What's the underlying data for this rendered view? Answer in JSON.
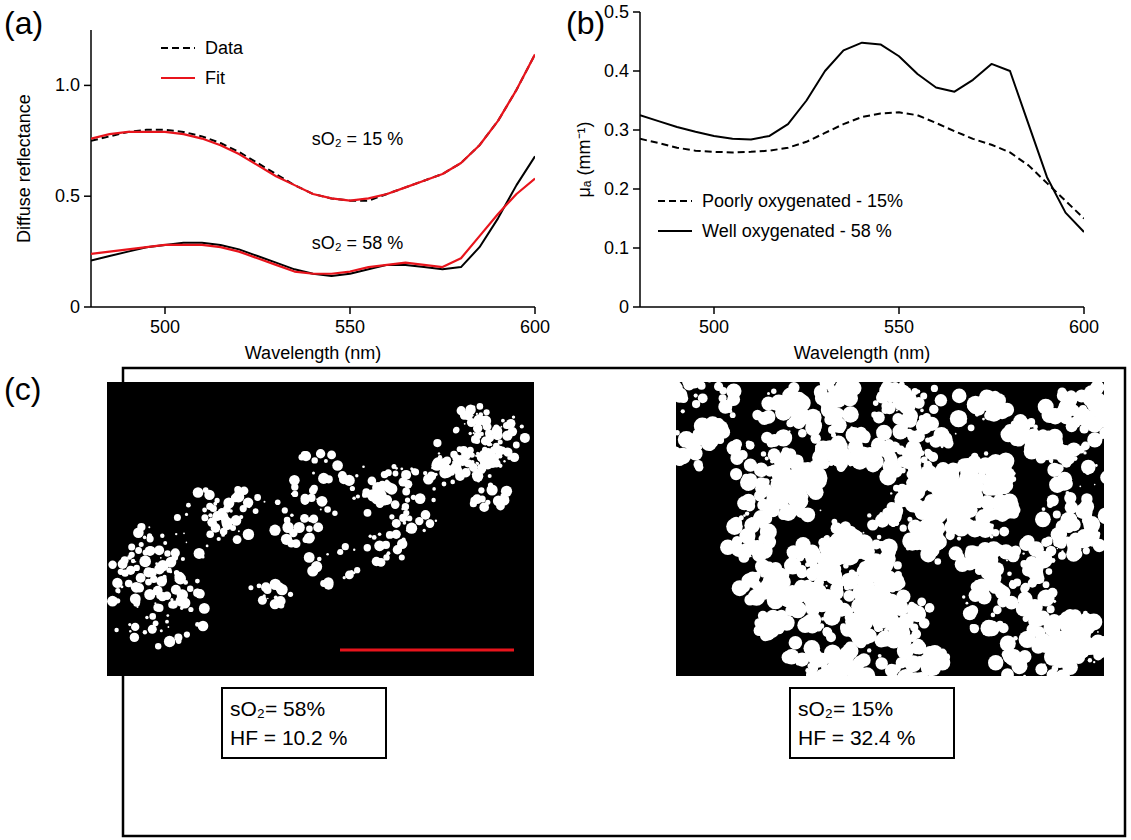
{
  "chart_data": [
    {
      "type": "line",
      "title": "(a)",
      "x_label": "Wavelength (nm)",
      "y_label": "Diffuse reflectance",
      "x": [
        480,
        485,
        490,
        495,
        500,
        505,
        510,
        515,
        520,
        525,
        530,
        535,
        540,
        545,
        550,
        555,
        560,
        565,
        570,
        575,
        580,
        585,
        590,
        595,
        600
      ],
      "series": [
        {
          "name": "Data",
          "color": "#000000",
          "line_style": "dashed",
          "values": [
            0.75,
            0.77,
            0.79,
            0.8,
            0.8,
            0.79,
            0.77,
            0.74,
            0.7,
            0.65,
            0.6,
            0.55,
            0.51,
            0.49,
            0.48,
            0.48,
            0.51,
            0.54,
            0.57,
            0.6,
            0.65,
            0.73,
            0.84,
            0.98,
            1.14
          ]
        },
        {
          "name": "Fit",
          "color": "#e8141c",
          "line_style": "solid",
          "values": [
            0.76,
            0.78,
            0.79,
            0.79,
            0.79,
            0.78,
            0.76,
            0.73,
            0.69,
            0.64,
            0.59,
            0.55,
            0.51,
            0.49,
            0.48,
            0.49,
            0.51,
            0.54,
            0.57,
            0.6,
            0.65,
            0.73,
            0.84,
            0.98,
            1.14
          ]
        },
        {
          "color": "#000000",
          "line_style": "solid",
          "values": [
            0.21,
            0.23,
            0.25,
            0.27,
            0.28,
            0.29,
            0.29,
            0.28,
            0.26,
            0.23,
            0.2,
            0.17,
            0.15,
            0.14,
            0.15,
            0.17,
            0.19,
            0.19,
            0.18,
            0.17,
            0.18,
            0.27,
            0.4,
            0.55,
            0.68
          ]
        },
        {
          "color": "#e8141c",
          "line_style": "solid",
          "values": [
            0.24,
            0.25,
            0.26,
            0.27,
            0.28,
            0.28,
            0.28,
            0.27,
            0.25,
            0.22,
            0.19,
            0.16,
            0.15,
            0.15,
            0.16,
            0.18,
            0.19,
            0.2,
            0.19,
            0.18,
            0.22,
            0.32,
            0.42,
            0.51,
            0.58
          ]
        }
      ],
      "annotations": [
        "sO₂ = 15 %",
        "sO₂ = 58 %"
      ],
      "xlim": [
        480,
        600
      ],
      "xticks": [
        500,
        550,
        600
      ],
      "ylim": [
        0,
        1.25
      ],
      "yticks": [
        0,
        0.5,
        {
          "value": 1,
          "label": "1.0"
        }
      ],
      "legend": "upper left",
      "grid": false
    },
    {
      "type": "line",
      "title": "(b)",
      "x_label": "Wavelength (nm)",
      "y_label": "μₐ (mm⁻¹)",
      "x": [
        480,
        485,
        490,
        495,
        500,
        505,
        510,
        515,
        520,
        525,
        530,
        535,
        540,
        545,
        550,
        555,
        560,
        565,
        570,
        575,
        580,
        585,
        590,
        595,
        600
      ],
      "series": [
        {
          "name": "Poorly oxygenated - 15%",
          "color": "#000000",
          "line_style": "dashed",
          "values": [
            0.285,
            0.278,
            0.27,
            0.265,
            0.263,
            0.262,
            0.263,
            0.265,
            0.27,
            0.28,
            0.295,
            0.31,
            0.322,
            0.328,
            0.33,
            0.325,
            0.312,
            0.298,
            0.285,
            0.275,
            0.262,
            0.24,
            0.21,
            0.18,
            0.15
          ]
        },
        {
          "name": "Well oxygenated - 58 %",
          "color": "#000000",
          "line_style": "solid",
          "values": [
            0.325,
            0.315,
            0.305,
            0.297,
            0.29,
            0.285,
            0.284,
            0.29,
            0.31,
            0.35,
            0.4,
            0.435,
            0.448,
            0.445,
            0.425,
            0.395,
            0.372,
            0.365,
            0.385,
            0.412,
            0.4,
            0.31,
            0.22,
            0.16,
            0.127
          ]
        }
      ],
      "xlim": [
        480,
        600
      ],
      "xticks": [
        500,
        550,
        600
      ],
      "ylim": [
        0,
        0.5
      ],
      "yticks": [
        0,
        0.1,
        0.2,
        0.3,
        0.4,
        0.5
      ],
      "legend": "lower left",
      "grid": false
    }
  ],
  "panel_c": {
    "label": "(c)",
    "images": [
      {
        "so2": "sO₂= 58%",
        "hf": "HF = 10.2 %"
      },
      {
        "so2": "sO₂= 15%",
        "hf": "HF = 32.4 %"
      }
    ]
  }
}
